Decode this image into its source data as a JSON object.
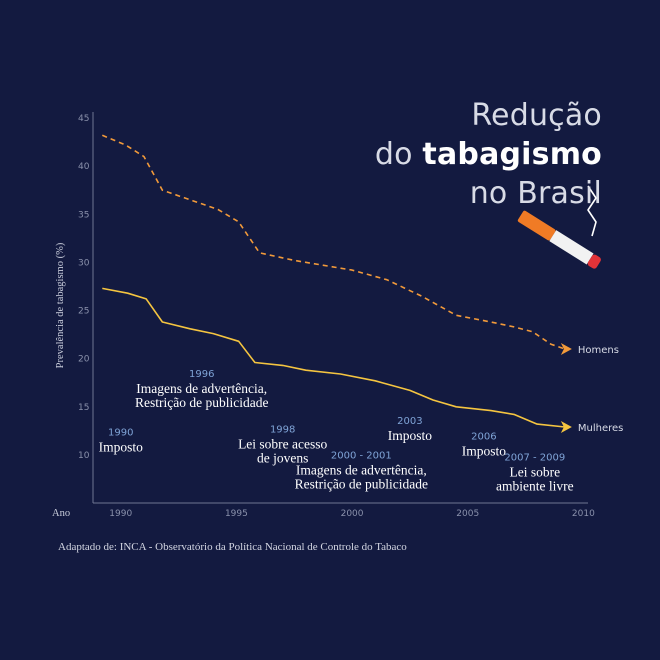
{
  "title": {
    "line1": "Redução",
    "line2_prefix": "do ",
    "line2_bold": "tabagismo",
    "line3": "no Brasil"
  },
  "source": "Adaptado de: INCA - Observatório da Política Nacional de Controle do Tabaco",
  "colors": {
    "background": "#131a40",
    "men": "#f29a3a",
    "women": "#f5c540",
    "axis": "#6f7592",
    "year_label": "#7fa3d6"
  },
  "icons": [
    "cigarette-icon",
    "smoke-icon",
    "arrow-right-icon"
  ],
  "chart_data": {
    "type": "line",
    "title": "",
    "xlabel": "Ano",
    "ylabel": "Prevalência de tabagismo (%)",
    "xlim": [
      1988.8,
      2010.2
    ],
    "ylim": [
      5,
      45
    ],
    "x_ticks": [
      1990,
      1995,
      2000,
      2005,
      2010
    ],
    "y_ticks": [
      10,
      15,
      20,
      25,
      30,
      35,
      40,
      45
    ],
    "grid": false,
    "series": [
      {
        "name": "Homens",
        "style": "dashed",
        "color": "#f29a3a",
        "x": [
          1989.2,
          1990.2,
          1991,
          1991.8,
          1993,
          1994.2,
          1995.1,
          1996,
          1997.5,
          2000,
          2001.5,
          2003,
          2004.5,
          2006,
          2007,
          2007.8,
          2008.6,
          2009.2
        ],
        "y": [
          43.2,
          42.2,
          41,
          37.5,
          36.5,
          35.5,
          34.2,
          31,
          30.2,
          29.2,
          28.2,
          26.5,
          24.5,
          23.8,
          23.3,
          22.8,
          21.5,
          21
        ]
      },
      {
        "name": "Mulheres",
        "style": "solid",
        "color": "#f5c540",
        "x": [
          1989.2,
          1990.3,
          1991.1,
          1991.8,
          1993,
          1994,
          1995.1,
          1995.8,
          1997,
          1998,
          1999.5,
          2001,
          2002.5,
          2003.5,
          2004.5,
          2006,
          2007,
          2008,
          2009.2
        ],
        "y": [
          27.3,
          26.8,
          26.2,
          23.8,
          23.1,
          22.6,
          21.8,
          19.6,
          19.3,
          18.8,
          18.4,
          17.7,
          16.7,
          15.7,
          15,
          14.6,
          14.2,
          13.2,
          12.9
        ]
      }
    ],
    "annotations": [
      {
        "year": "1990",
        "text": [
          "Imposto"
        ],
        "x": 1990,
        "y": 12
      },
      {
        "year": "1996",
        "text": [
          "Imagens de advertência,",
          "Restrição de publicidade"
        ],
        "x": 1993.5,
        "y": 18.1
      },
      {
        "year": "1998",
        "text": [
          "Lei sobre acesso",
          "de jovens"
        ],
        "x": 1997,
        "y": 12.3
      },
      {
        "year": "2000 - 2001",
        "text": [
          "Imagens de advertência,",
          "Restrição de publicidade"
        ],
        "x": 2000.4,
        "y": 9.6
      },
      {
        "year": "2003",
        "text": [
          "Imposto"
        ],
        "x": 2002.5,
        "y": 13.2
      },
      {
        "year": "2006",
        "text": [
          "Imposto"
        ],
        "x": 2005.7,
        "y": 11.6
      },
      {
        "year": "2007 - 2009",
        "text": [
          "Lei sobre",
          "ambiente livre"
        ],
        "x": 2007.9,
        "y": 9.4
      }
    ]
  }
}
